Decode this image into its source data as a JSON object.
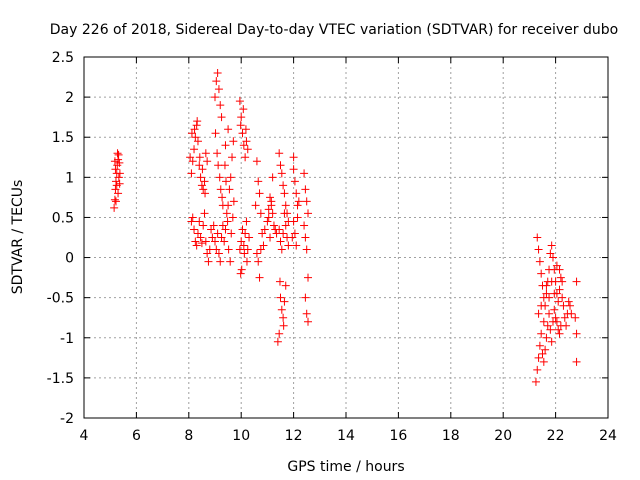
{
  "chart_data": {
    "type": "scatter",
    "title": "Day 226 of 2018, Sidereal Day-to-day VTEC variation (SDTVAR) for receiver dubo",
    "xlabel": "GPS time / hours",
    "ylabel": "SDTVAR / TECUs",
    "xlim": [
      4,
      24
    ],
    "ylim": [
      -2,
      2.5
    ],
    "xticks": [
      4,
      6,
      8,
      10,
      12,
      14,
      16,
      18,
      20,
      22,
      24
    ],
    "yticks": [
      -2,
      -1.5,
      -1,
      -0.5,
      0,
      0.5,
      1,
      1.5,
      2,
      2.5
    ],
    "xtick_labels": [
      "4",
      "6",
      "8",
      "10",
      "12",
      "14",
      "16",
      "18",
      "20",
      "22",
      "24"
    ],
    "ytick_labels": [
      "-2",
      "-1.5",
      "-1",
      "-0.5",
      "0",
      "0.5",
      "1",
      "1.5",
      "2",
      "2.5"
    ],
    "grid": true,
    "marker": "+",
    "color": "#ff0000",
    "series": [
      {
        "name": "SDTVAR",
        "points": [
          [
            5.15,
            0.62
          ],
          [
            5.18,
            0.72
          ],
          [
            5.2,
            0.85
          ],
          [
            5.22,
            0.95
          ],
          [
            5.25,
            1.05
          ],
          [
            5.27,
            1.15
          ],
          [
            5.3,
            1.22
          ],
          [
            5.32,
            1.28
          ],
          [
            5.35,
            1.18
          ],
          [
            5.37,
            1.05
          ],
          [
            5.2,
            1.1
          ],
          [
            5.25,
            0.9
          ],
          [
            5.3,
            0.8
          ],
          [
            5.33,
            1.0
          ],
          [
            5.18,
            1.2
          ],
          [
            5.28,
            1.3
          ],
          [
            5.22,
            0.7
          ],
          [
            5.36,
            0.92
          ],
          [
            8.05,
            1.25
          ],
          [
            8.1,
            1.05
          ],
          [
            8.15,
            1.2
          ],
          [
            8.2,
            1.35
          ],
          [
            8.25,
            1.5
          ],
          [
            8.3,
            1.65
          ],
          [
            8.35,
            1.45
          ],
          [
            8.4,
            1.15
          ],
          [
            8.45,
            1.0
          ],
          [
            8.5,
            0.9
          ],
          [
            8.55,
            0.85
          ],
          [
            8.6,
            0.95
          ],
          [
            8.65,
            1.3
          ],
          [
            8.7,
            1.2
          ],
          [
            8.12,
            1.55
          ],
          [
            8.22,
            1.6
          ],
          [
            8.32,
            1.7
          ],
          [
            8.42,
            1.25
          ],
          [
            8.52,
            1.1
          ],
          [
            8.62,
            0.8
          ],
          [
            8.1,
            0.45
          ],
          [
            8.15,
            0.5
          ],
          [
            8.2,
            0.35
          ],
          [
            8.25,
            0.2
          ],
          [
            8.3,
            0.15
          ],
          [
            8.35,
            0.3
          ],
          [
            8.4,
            0.45
          ],
          [
            8.45,
            0.25
          ],
          [
            8.5,
            0.18
          ],
          [
            8.55,
            0.4
          ],
          [
            8.6,
            0.55
          ],
          [
            8.65,
            0.2
          ],
          [
            8.7,
            0.05
          ],
          [
            8.75,
            -0.05
          ],
          [
            8.8,
            0.1
          ],
          [
            8.85,
            0.35
          ],
          [
            8.9,
            0.25
          ],
          [
            8.95,
            0.4
          ],
          [
            9.0,
            2.0
          ],
          [
            9.05,
            2.2
          ],
          [
            9.1,
            2.3
          ],
          [
            9.15,
            2.1
          ],
          [
            9.2,
            1.9
          ],
          [
            9.25,
            1.75
          ],
          [
            9.02,
            1.55
          ],
          [
            9.08,
            1.3
          ],
          [
            9.12,
            1.15
          ],
          [
            9.18,
            1.0
          ],
          [
            9.22,
            0.85
          ],
          [
            9.27,
            0.75
          ],
          [
            9.3,
            0.65
          ],
          [
            9.0,
            0.2
          ],
          [
            9.05,
            0.1
          ],
          [
            9.1,
            0.3
          ],
          [
            9.15,
            0.05
          ],
          [
            9.2,
            -0.05
          ],
          [
            9.25,
            0.25
          ],
          [
            9.3,
            0.4
          ],
          [
            9.35,
            0.2
          ],
          [
            9.4,
            0.35
          ],
          [
            9.45,
            0.55
          ],
          [
            9.5,
            0.65
          ],
          [
            9.55,
            0.85
          ],
          [
            9.6,
            1.0
          ],
          [
            9.65,
            1.25
          ],
          [
            9.7,
            1.45
          ],
          [
            9.38,
            1.15
          ],
          [
            9.42,
            0.95
          ],
          [
            9.48,
            0.45
          ],
          [
            9.52,
            0.1
          ],
          [
            9.58,
            -0.05
          ],
          [
            9.62,
            0.3
          ],
          [
            9.68,
            0.5
          ],
          [
            9.72,
            0.7
          ],
          [
            9.4,
            1.4
          ],
          [
            9.5,
            1.6
          ],
          [
            9.95,
            1.95
          ],
          [
            10.0,
            1.75
          ],
          [
            10.05,
            1.55
          ],
          [
            10.1,
            1.4
          ],
          [
            10.15,
            1.25
          ],
          [
            10.2,
            1.45
          ],
          [
            10.25,
            1.35
          ],
          [
            9.98,
            1.65
          ],
          [
            10.08,
            1.85
          ],
          [
            10.18,
            1.6
          ],
          [
            9.95,
            0.1
          ],
          [
            10.0,
            0.2
          ],
          [
            10.05,
            0.35
          ],
          [
            10.1,
            0.15
          ],
          [
            10.15,
            0.3
          ],
          [
            10.2,
            0.45
          ],
          [
            10.25,
            0.1
          ],
          [
            10.3,
            0.25
          ],
          [
            9.98,
            -0.2
          ],
          [
            10.02,
            -0.15
          ],
          [
            10.12,
            0.05
          ],
          [
            10.22,
            -0.05
          ],
          [
            10.6,
            1.2
          ],
          [
            10.65,
            0.95
          ],
          [
            10.7,
            0.8
          ],
          [
            10.75,
            0.55
          ],
          [
            10.8,
            0.3
          ],
          [
            10.85,
            0.15
          ],
          [
            10.6,
            0.05
          ],
          [
            10.65,
            -0.05
          ],
          [
            10.7,
            -0.25
          ],
          [
            10.75,
            0.1
          ],
          [
            10.9,
            0.35
          ],
          [
            10.55,
            0.65
          ],
          [
            11.0,
            0.45
          ],
          [
            11.05,
            0.6
          ],
          [
            11.1,
            0.75
          ],
          [
            11.15,
            0.65
          ],
          [
            11.2,
            0.55
          ],
          [
            11.25,
            0.4
          ],
          [
            11.3,
            0.35
          ],
          [
            11.35,
            0.3
          ],
          [
            11.05,
            0.5
          ],
          [
            11.15,
            0.7
          ],
          [
            11.2,
            1.0
          ],
          [
            11.1,
            0.25
          ],
          [
            11.45,
            1.3
          ],
          [
            11.5,
            1.15
          ],
          [
            11.55,
            1.05
          ],
          [
            11.6,
            0.9
          ],
          [
            11.65,
            0.8
          ],
          [
            11.7,
            0.65
          ],
          [
            11.75,
            0.55
          ],
          [
            11.8,
            0.45
          ],
          [
            11.45,
            0.35
          ],
          [
            11.5,
            0.2
          ],
          [
            11.55,
            0.1
          ],
          [
            11.6,
            0.3
          ],
          [
            11.65,
            0.55
          ],
          [
            11.7,
            0.4
          ],
          [
            11.75,
            0.25
          ],
          [
            11.8,
            0.15
          ],
          [
            11.5,
            -0.5
          ],
          [
            11.55,
            -0.65
          ],
          [
            11.6,
            -0.75
          ],
          [
            11.65,
            -0.55
          ],
          [
            11.7,
            -0.35
          ],
          [
            11.45,
            -0.95
          ],
          [
            11.4,
            -1.05
          ],
          [
            11.48,
            -0.3
          ],
          [
            11.62,
            -0.85
          ],
          [
            12.0,
            1.1
          ],
          [
            12.05,
            0.95
          ],
          [
            12.1,
            0.8
          ],
          [
            12.15,
            0.65
          ],
          [
            12.0,
            0.45
          ],
          [
            12.05,
            0.3
          ],
          [
            12.1,
            0.15
          ],
          [
            12.15,
            0.5
          ],
          [
            12.2,
            0.7
          ],
          [
            11.95,
            0.25
          ],
          [
            12.0,
            1.25
          ],
          [
            12.4,
            1.05
          ],
          [
            12.45,
            0.85
          ],
          [
            12.5,
            0.7
          ],
          [
            12.55,
            0.55
          ],
          [
            12.4,
            0.4
          ],
          [
            12.45,
            0.25
          ],
          [
            12.5,
            0.1
          ],
          [
            12.55,
            -0.25
          ],
          [
            12.45,
            -0.5
          ],
          [
            12.5,
            -0.7
          ],
          [
            12.55,
            -0.8
          ],
          [
            21.25,
            -1.55
          ],
          [
            21.3,
            -1.4
          ],
          [
            21.35,
            -1.25
          ],
          [
            21.4,
            -1.1
          ],
          [
            21.45,
            -0.95
          ],
          [
            21.5,
            -1.2
          ],
          [
            21.55,
            -1.3
          ],
          [
            21.6,
            -1.15
          ],
          [
            21.65,
            -1.0
          ],
          [
            21.7,
            -0.85
          ],
          [
            21.75,
            -0.7
          ],
          [
            21.8,
            -0.9
          ],
          [
            21.85,
            -1.05
          ],
          [
            21.9,
            -0.8
          ],
          [
            21.95,
            -0.65
          ],
          [
            22.0,
            -0.75
          ],
          [
            22.05,
            -0.8
          ],
          [
            22.1,
            -0.9
          ],
          [
            22.15,
            -0.95
          ],
          [
            22.2,
            -0.85
          ],
          [
            21.3,
            0.25
          ],
          [
            21.35,
            0.1
          ],
          [
            21.4,
            -0.05
          ],
          [
            21.45,
            -0.2
          ],
          [
            21.5,
            -0.35
          ],
          [
            21.55,
            -0.5
          ],
          [
            21.6,
            -0.6
          ],
          [
            21.65,
            -0.45
          ],
          [
            21.7,
            -0.3
          ],
          [
            21.75,
            -0.15
          ],
          [
            21.8,
            0.05
          ],
          [
            21.85,
            0.15
          ],
          [
            21.9,
            0.0
          ],
          [
            21.95,
            -0.15
          ],
          [
            22.0,
            -0.3
          ],
          [
            22.05,
            -0.45
          ],
          [
            22.1,
            -0.55
          ],
          [
            22.15,
            -0.4
          ],
          [
            22.2,
            -0.25
          ],
          [
            22.25,
            -0.5
          ],
          [
            22.3,
            -0.6
          ],
          [
            22.35,
            -0.75
          ],
          [
            22.4,
            -0.85
          ],
          [
            22.45,
            -0.7
          ],
          [
            22.5,
            -0.55
          ],
          [
            22.55,
            -0.6
          ],
          [
            22.6,
            -0.7
          ],
          [
            21.35,
            -0.7
          ],
          [
            21.45,
            -0.6
          ],
          [
            21.55,
            -0.8
          ],
          [
            21.65,
            -0.35
          ],
          [
            21.75,
            -0.5
          ],
          [
            21.85,
            -0.3
          ],
          [
            21.95,
            -0.45
          ],
          [
            22.05,
            -0.1
          ],
          [
            22.15,
            -0.15
          ],
          [
            22.25,
            -0.3
          ],
          [
            22.8,
            -0.3
          ],
          [
            22.75,
            -0.75
          ],
          [
            22.8,
            -0.95
          ],
          [
            22.8,
            -1.3
          ]
        ]
      }
    ]
  }
}
